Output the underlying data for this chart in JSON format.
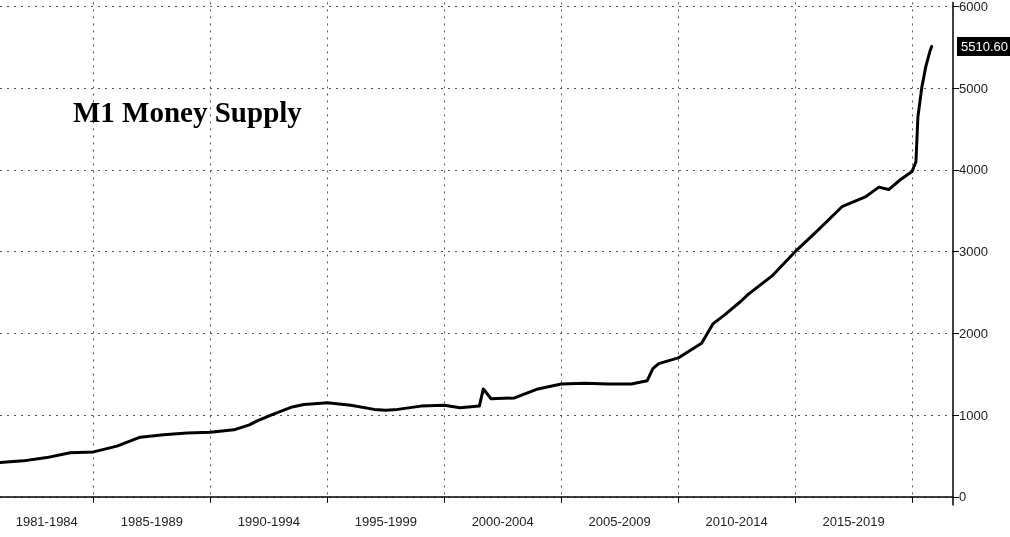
{
  "chart_data": {
    "type": "line",
    "title": "M1 Money Supply",
    "x": [
      "1981-01",
      "1982-01",
      "1983-01",
      "1984-01",
      "1985-01",
      "1986-01",
      "1987-01",
      "1988-01",
      "1989-01",
      "1990-01",
      "1991-01",
      "1991-09",
      "1992-01",
      "1992-09",
      "1993-07",
      "1994-01",
      "1995-01",
      "1996-01",
      "1997-01",
      "1997-07",
      "1998-01",
      "1999-01",
      "2000-01",
      "2000-09",
      "2001-07",
      "2001-09",
      "2002-01",
      "2003-01",
      "2004-01",
      "2005-01",
      "2006-01",
      "2007-01",
      "2008-01",
      "2008-09",
      "2008-12",
      "2009-03",
      "2010-01",
      "2011-01",
      "2011-07",
      "2012-01",
      "2012-09",
      "2013-01",
      "2014-01",
      "2015-01",
      "2016-01",
      "2017-01",
      "2018-01",
      "2018-08",
      "2019-01",
      "2019-07",
      "2020-01",
      "2020-03",
      "2020-04",
      "2020-06",
      "2020-08",
      "2020-10",
      "2020-11"
    ],
    "series": [
      {
        "color": "#000000",
        "values": [
          420,
          440,
          480,
          540,
          550,
          620,
          730,
          760,
          780,
          790,
          820,
          880,
          930,
          1010,
          1100,
          1130,
          1150,
          1120,
          1070,
          1060,
          1070,
          1110,
          1120,
          1090,
          1110,
          1320,
          1200,
          1210,
          1320,
          1380,
          1390,
          1380,
          1380,
          1420,
          1570,
          1630,
          1700,
          1880,
          2120,
          2230,
          2390,
          2480,
          2700,
          3000,
          3270,
          3550,
          3670,
          3790,
          3760,
          3880,
          3980,
          4100,
          4650,
          5010,
          5260,
          5440,
          5510.6
        ]
      }
    ],
    "xlim": [
      "1981-01",
      "2021-10"
    ],
    "xticks": [
      {
        "value": "1983",
        "label": "1981-1984"
      },
      {
        "value": "1985",
        "label": null
      },
      {
        "value": "1987-07",
        "label": "1985-1989"
      },
      {
        "value": "1990",
        "label": null
      },
      {
        "value": "1992-07",
        "label": "1990-1994"
      },
      {
        "value": "1995",
        "label": null
      },
      {
        "value": "1997-07",
        "label": "1995-1999"
      },
      {
        "value": "2000",
        "label": null
      },
      {
        "value": "2002-07",
        "label": "2000-2004"
      },
      {
        "value": "2005",
        "label": null
      },
      {
        "value": "2007-07",
        "label": "2005-2009"
      },
      {
        "value": "2010",
        "label": null
      },
      {
        "value": "2012-07",
        "label": "2010-2014"
      },
      {
        "value": "2015",
        "label": null
      },
      {
        "value": "2017-07",
        "label": "2015-2019"
      },
      {
        "value": "2020",
        "label": null
      }
    ],
    "ylim": [
      -100,
      6050
    ],
    "yticks": [
      0,
      1000,
      2000,
      3000,
      4000,
      5000,
      6000
    ],
    "grid": true,
    "marker": "none",
    "line_style": "solid",
    "annotations": [
      {
        "text": "5510.60",
        "x": "2020-11",
        "y": 5510.6
      }
    ]
  }
}
